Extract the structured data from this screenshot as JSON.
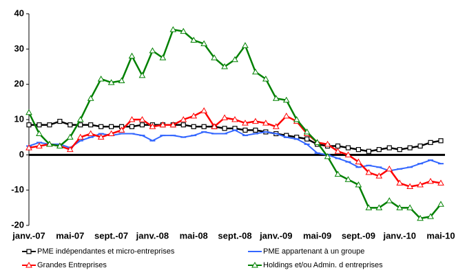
{
  "chart_data": {
    "type": "line",
    "categories": [
      "janv.-07",
      null,
      null,
      null,
      "mai-07",
      null,
      null,
      null,
      "sept.-07",
      null,
      null,
      null,
      "janv.-08",
      null,
      null,
      null,
      "mai-08",
      null,
      null,
      null,
      "sept.-08",
      null,
      null,
      null,
      "janv.-09",
      null,
      null,
      null,
      "mai-09",
      null,
      null,
      null,
      "sept.-09",
      null,
      null,
      null,
      "janv.-10",
      null,
      null,
      null,
      "mai-10"
    ],
    "ylim": [
      -20,
      40
    ],
    "yticks": [
      -20,
      -10,
      0,
      10,
      20,
      30,
      40
    ],
    "series": [
      {
        "name": "PME indépendantes et micro-entreprises",
        "color": "#000000",
        "marker": "square",
        "values": [
          8.5,
          8.5,
          8.5,
          9.5,
          8.5,
          8.5,
          8.5,
          8,
          8,
          8,
          8,
          8.5,
          8.5,
          8.5,
          8.5,
          8.5,
          8,
          8,
          8,
          7.5,
          7.5,
          7,
          7,
          6.5,
          6,
          5.5,
          5,
          4.5,
          3,
          2.5,
          2.5,
          2,
          1.5,
          1,
          1.5,
          2,
          1.5,
          2,
          2.5,
          3.5,
          4
        ]
      },
      {
        "name": "PME appartenant à un groupe",
        "color": "#3366ff",
        "marker": "dash",
        "values": [
          2.5,
          3.5,
          3,
          3,
          2,
          4,
          5,
          6,
          5.5,
          6,
          6,
          5.5,
          4,
          5.5,
          5.5,
          5,
          5.5,
          6.5,
          6,
          6,
          7,
          5.5,
          6,
          6.5,
          6,
          5,
          4.5,
          3,
          0.5,
          0,
          -1,
          -2,
          -3.5,
          -3,
          -3.5,
          -4.5,
          -4,
          -3.5,
          -2.5,
          -1.5,
          -2.5
        ]
      },
      {
        "name": "Grandes Entreprises",
        "color": "#ff0000",
        "marker": "triangle",
        "values": [
          2,
          2.5,
          3,
          2.5,
          1.5,
          5,
          6,
          5,
          6,
          7,
          10,
          10,
          8,
          8.5,
          8.5,
          10,
          11,
          12.5,
          8,
          10.5,
          10,
          9,
          9.5,
          9,
          8,
          11,
          9.5,
          6,
          3.5,
          3,
          1,
          0,
          -2,
          -5,
          -6,
          -4,
          -8,
          -9,
          -8.5,
          -7.5,
          -8
        ]
      },
      {
        "name": "Holdings et/ou Admin. d entreprises",
        "color": "#008000",
        "marker": "triangle",
        "values": [
          12,
          6,
          3,
          2.5,
          5,
          10,
          16,
          21.5,
          20.5,
          21,
          28,
          22.5,
          29.5,
          27.5,
          35.5,
          35,
          32.5,
          31.5,
          27.5,
          25,
          27,
          31,
          23.5,
          21.5,
          16,
          15.5,
          10,
          6.5,
          3.5,
          -0.5,
          -5.5,
          -7,
          -8.5,
          -15,
          -15,
          -13,
          -15,
          -15,
          -18,
          -17.5,
          -14
        ]
      }
    ]
  }
}
